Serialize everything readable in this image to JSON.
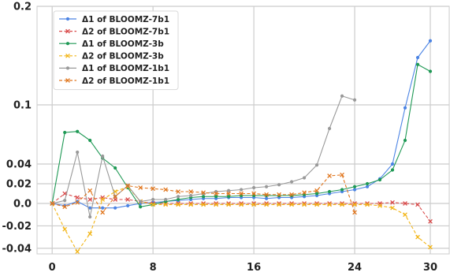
{
  "chart_data": {
    "type": "line",
    "title": "",
    "xlabel": "",
    "ylabel": "",
    "xlim": [
      -1.2,
      31.5
    ],
    "ylim": [
      -0.045,
      0.2
    ],
    "y_breaks": [
      {
        "at": 0.04,
        "to": 0.1
      },
      {
        "at": 0.1,
        "to": 0.2
      }
    ],
    "x_ticks": [
      0,
      8,
      16,
      24,
      30
    ],
    "x_tick_labels": [
      "0",
      "8",
      "16",
      "24",
      "30"
    ],
    "y_ticks": [
      -0.04,
      -0.02,
      0.0,
      0.02,
      0.04,
      0.1,
      0.2
    ],
    "y_tick_labels": [
      "-0.04",
      "-0.02",
      "0.0",
      "0.02",
      "0.04",
      "0.1",
      "0.2"
    ],
    "grid": true,
    "legend_position": "top-left",
    "series": [
      {
        "name": "Δ1 of BLOOMZ-7b1",
        "color": "#4c84e4",
        "dash": "solid",
        "marker": "dot",
        "x": [
          0,
          1,
          2,
          3,
          4,
          5,
          6,
          7,
          8,
          9,
          10,
          11,
          12,
          13,
          14,
          15,
          16,
          17,
          18,
          19,
          20,
          21,
          22,
          23,
          24,
          25,
          26,
          27,
          28,
          29,
          30
        ],
        "y": [
          0,
          -0.002,
          0.002,
          -0.004,
          -0.004,
          -0.004,
          -0.002,
          0,
          0.001,
          0.002,
          0.003,
          0.004,
          0.005,
          0.005,
          0.006,
          0.006,
          0.006,
          0.005,
          0.006,
          0.006,
          0.007,
          0.008,
          0.01,
          0.012,
          0.014,
          0.017,
          0.025,
          0.04,
          0.097,
          0.148,
          0.165
        ]
      },
      {
        "name": "Δ2 of BLOOMZ-7b1",
        "color": "#d94a4a",
        "dash": "dashed",
        "marker": "x",
        "x": [
          0,
          1,
          2,
          3,
          4,
          5,
          6,
          7,
          8,
          9,
          10,
          11,
          12,
          13,
          14,
          15,
          16,
          17,
          18,
          19,
          20,
          21,
          22,
          23,
          24,
          25,
          26,
          27,
          28,
          29,
          30
        ],
        "y": [
          0,
          0.01,
          0.006,
          0.004,
          0.006,
          0.004,
          0.004,
          0.002,
          0,
          0,
          0,
          0,
          0,
          0,
          0,
          0,
          0,
          0,
          0,
          0,
          0,
          0,
          0,
          0,
          0,
          0,
          0,
          0.001,
          0,
          -0.001,
          -0.016
        ]
      },
      {
        "name": "Δ1 of BLOOMZ-3b",
        "color": "#1f9955",
        "dash": "solid",
        "marker": "dot",
        "x": [
          0,
          1,
          2,
          3,
          4,
          5,
          6,
          7,
          8,
          9,
          10,
          11,
          12,
          13,
          14,
          15,
          16,
          17,
          18,
          19,
          20,
          21,
          22,
          23,
          24,
          25,
          26,
          27,
          28,
          29,
          30
        ],
        "y": [
          0,
          0.072,
          0.073,
          0.064,
          0.046,
          0.036,
          0.016,
          -0.003,
          -0.001,
          0.002,
          0.004,
          0.006,
          0.007,
          0.007,
          0.007,
          0.008,
          0.008,
          0.008,
          0.008,
          0.008,
          0.009,
          0.01,
          0.012,
          0.014,
          0.017,
          0.02,
          0.024,
          0.034,
          0.064,
          0.141,
          0.134
        ]
      },
      {
        "name": "Δ2 of BLOOMZ-3b",
        "color": "#f2b517",
        "dash": "dashed",
        "marker": "x",
        "x": [
          0,
          1,
          2,
          3,
          4,
          5,
          6,
          7,
          8,
          9,
          10,
          11,
          12,
          13,
          14,
          15,
          16,
          17,
          18,
          19,
          20,
          21,
          22,
          23,
          24,
          25,
          26,
          27,
          28,
          29,
          30
        ],
        "y": [
          0,
          -0.023,
          -0.043,
          -0.027,
          0.004,
          0.012,
          0.017,
          0.002,
          -0.001,
          -0.001,
          -0.001,
          -0.001,
          -0.001,
          -0.001,
          -0.001,
          -0.001,
          -0.001,
          -0.001,
          -0.001,
          -0.001,
          -0.001,
          -0.001,
          -0.001,
          -0.001,
          -0.001,
          -0.001,
          -0.002,
          -0.004,
          -0.01,
          -0.03,
          -0.039
        ]
      },
      {
        "name": "Δ1 of BLOOMZ-1b1",
        "color": "#999999",
        "dash": "solid",
        "marker": "dot",
        "x": [
          0,
          1,
          2,
          3,
          4,
          5,
          6,
          7,
          8,
          9,
          10,
          11,
          12,
          13,
          14,
          15,
          16,
          17,
          18,
          19,
          20,
          21,
          22,
          23,
          24
        ],
        "y": [
          0,
          0.003,
          0.052,
          -0.012,
          0.048,
          0.007,
          0.018,
          0.002,
          0.004,
          0.004,
          0.007,
          0.008,
          0.01,
          0.012,
          0.013,
          0.014,
          0.016,
          0.017,
          0.019,
          0.022,
          0.026,
          0.039,
          0.076,
          0.109,
          0.105
        ]
      },
      {
        "name": "Δ2 of BLOOMZ-1b1",
        "color": "#e0761e",
        "dash": "dashed",
        "marker": "x",
        "x": [
          0,
          1,
          2,
          3,
          4,
          5,
          6,
          7,
          8,
          9,
          10,
          11,
          12,
          13,
          14,
          15,
          16,
          17,
          18,
          19,
          20,
          21,
          22,
          23,
          24
        ],
        "y": [
          0,
          -0.003,
          0.001,
          0.013,
          -0.008,
          0.007,
          0.018,
          0.016,
          0.015,
          0.014,
          0.012,
          0.012,
          0.011,
          0.01,
          0.01,
          0.01,
          0.01,
          0.009,
          0.009,
          0.009,
          0.011,
          0.013,
          0.028,
          0.029,
          -0.008
        ]
      }
    ]
  }
}
